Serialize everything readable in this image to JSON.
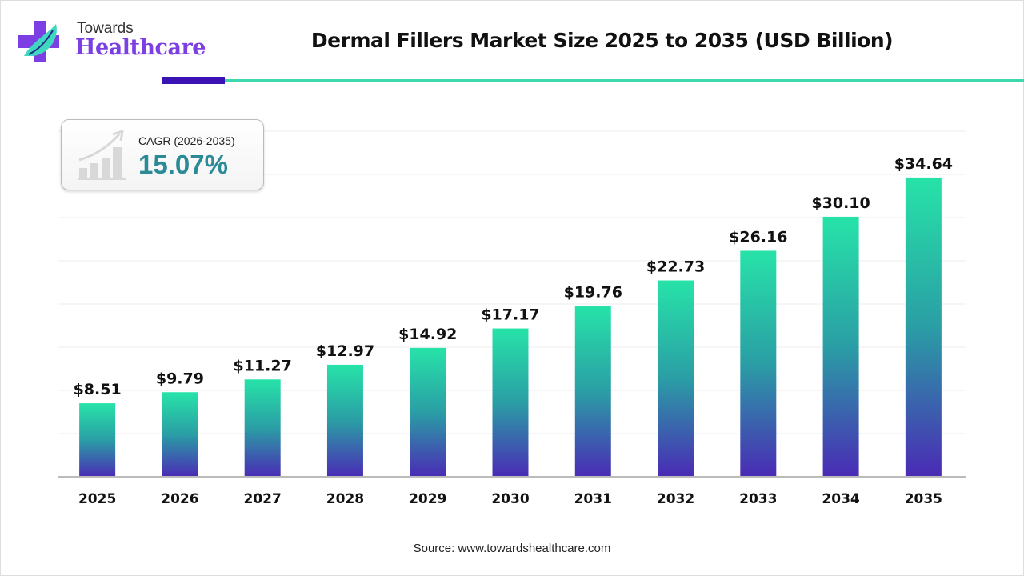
{
  "logo": {
    "line1": "Towards",
    "line2": "Healthcare"
  },
  "title": "Dermal Fillers Market Size 2025 to 2035 (USD Billion)",
  "cagr": {
    "label": "CAGR (2026-2035)",
    "value": "15.07%",
    "icon": "growth-bar-chart-icon"
  },
  "source": "Source: www.towardshealthcare.com",
  "colors": {
    "accent_dark": "#3b12b4",
    "accent_teal": "#3ed8ad",
    "bar_top": "#27e3a8",
    "bar_bottom": "#4a2bb5",
    "cagr_value": "#2a8a96",
    "logo_purple": "#7b3fe4"
  },
  "chart_data": {
    "type": "bar",
    "title": "Dermal Fillers Market Size 2025 to 2035 (USD Billion)",
    "categories": [
      "2025",
      "2026",
      "2027",
      "2028",
      "2029",
      "2030",
      "2031",
      "2032",
      "2033",
      "2034",
      "2035"
    ],
    "values": [
      8.51,
      9.79,
      11.27,
      12.97,
      14.92,
      17.17,
      19.76,
      22.73,
      26.16,
      30.1,
      34.64
    ],
    "data_labels": [
      "$8.51",
      "$9.79",
      "$11.27",
      "$12.97",
      "$14.92",
      "$17.17",
      "$19.76",
      "$22.73",
      "$26.16",
      "$30.10",
      "$34.64"
    ],
    "xlabel": "",
    "ylabel": "",
    "ylim": [
      0,
      40
    ],
    "grid": true,
    "y_axis_visible": false
  }
}
